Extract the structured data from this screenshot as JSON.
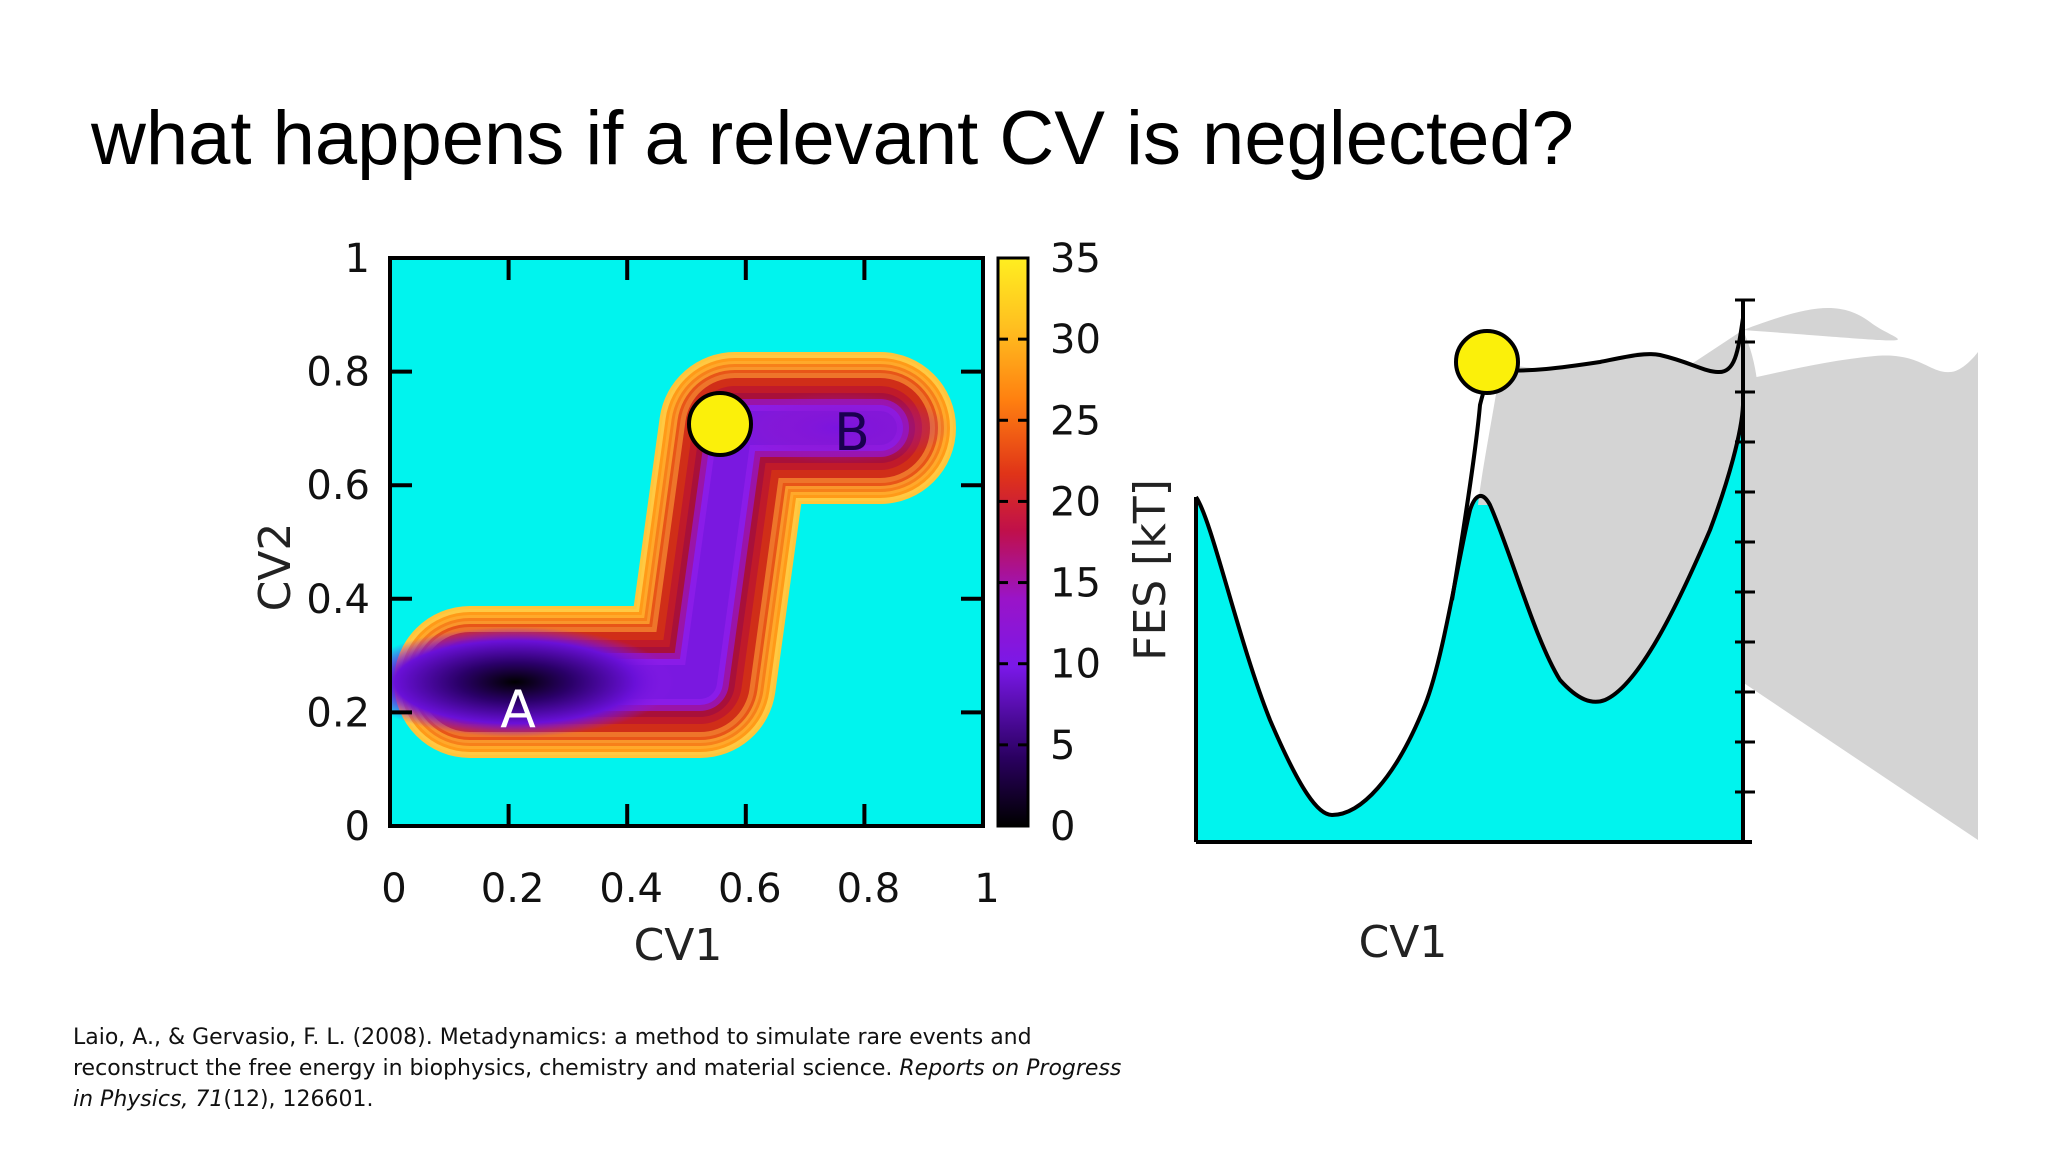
{
  "slide": {
    "title": "what happens if a relevant CV is neglected?"
  },
  "colors": {
    "background": "#ffffff",
    "basin_fill": "#00f4ee",
    "filled_region": "#d4d4d4",
    "ball": "#fbf00a",
    "colormap": [
      "#000000",
      "#2a0060",
      "#6a10d8",
      "#8a1ce8",
      "#b0106a",
      "#e02a18",
      "#ff7a10",
      "#ffb020",
      "#ffe520"
    ]
  },
  "left_plot": {
    "xlabel": "CV1",
    "ylabel": "CV2",
    "x_ticks": [
      "0",
      "0.2",
      "0.4",
      "0.6",
      "0.8",
      "1"
    ],
    "y_ticks": [
      "0",
      "0.2",
      "0.4",
      "0.6",
      "0.8",
      "1"
    ],
    "xlim": [
      0,
      1
    ],
    "ylim": [
      0,
      1
    ],
    "colorbar_ticks": [
      "0",
      "5",
      "10",
      "15",
      "20",
      "25",
      "30",
      "35"
    ],
    "colorbar_range": [
      0,
      35
    ],
    "labels": {
      "a": "A",
      "b": "B"
    },
    "ball": {
      "cv1": 0.56,
      "cv2": 0.71
    },
    "minima": [
      {
        "name": "A",
        "cv1": 0.21,
        "cv2": 0.25
      },
      {
        "name": "B",
        "cv1": 0.78,
        "cv2": 0.7
      }
    ]
  },
  "right_plot": {
    "xlabel": "CV1",
    "ylabel": "FES [kT]"
  },
  "citation": {
    "line1": "Laio, A., & Gervasio, F. L. (2008). Metadynamics: a method to simulate rare events and",
    "line2": "reconstruct the free energy in biophysics, chemistry and material science.",
    "journal": "Reports on Progress",
    "journal2": "in Physics, 71",
    "details": "(12), 126601."
  }
}
